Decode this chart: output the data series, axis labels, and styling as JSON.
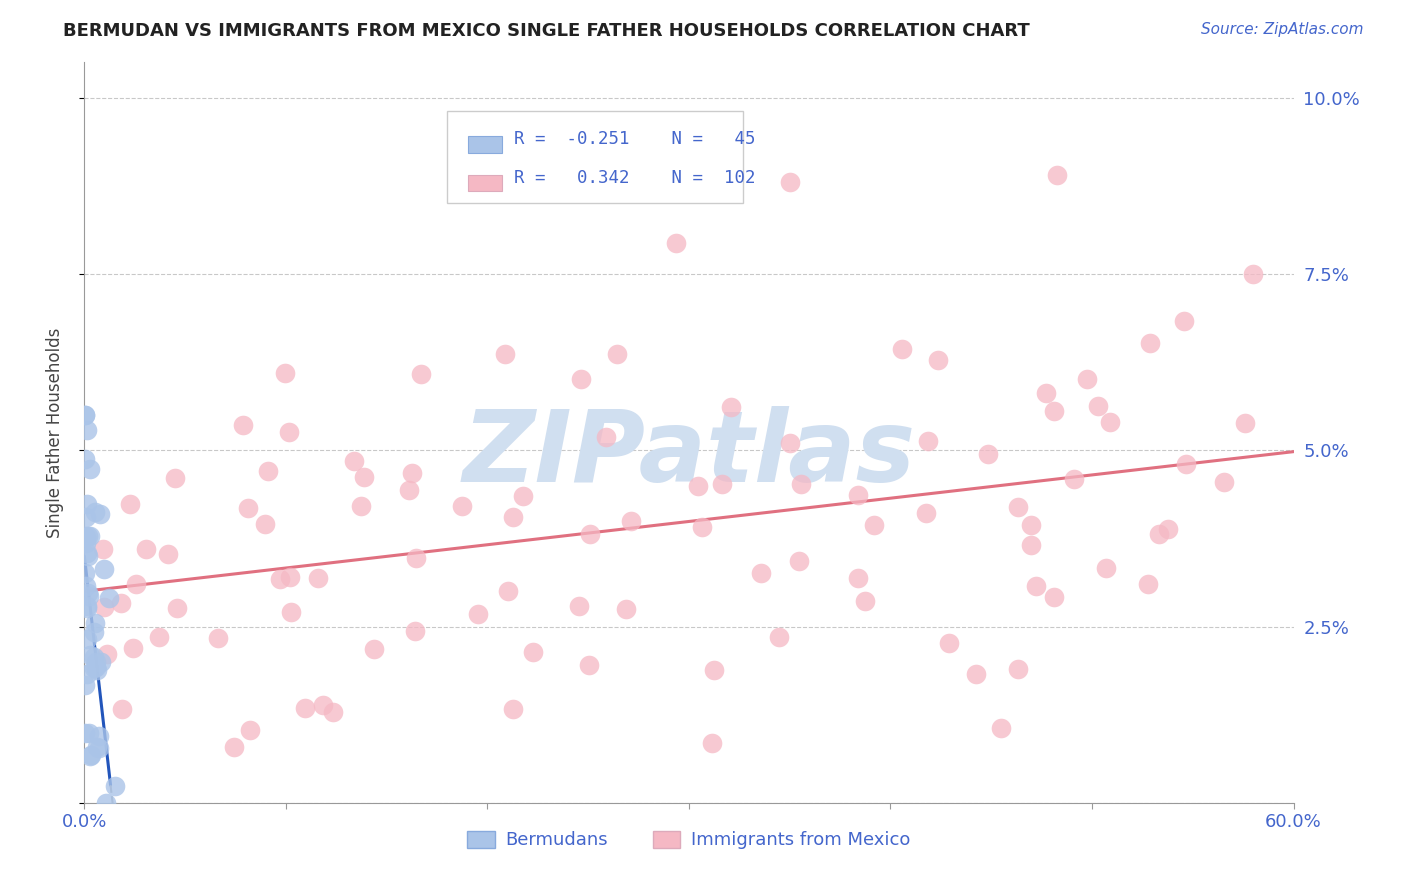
{
  "title": "BERMUDAN VS IMMIGRANTS FROM MEXICO SINGLE FATHER HOUSEHOLDS CORRELATION CHART",
  "source": "Source: ZipAtlas.com",
  "ylabel": "Single Father Households",
  "xlim": [
    0.0,
    0.6
  ],
  "ylim": [
    0.0,
    0.105
  ],
  "ytick_positions": [
    0.0,
    0.025,
    0.05,
    0.075,
    0.1
  ],
  "ytick_labels": [
    "",
    "2.5%",
    "5.0%",
    "7.5%",
    "10.0%"
  ],
  "bermudans_R": -0.251,
  "bermudans_N": 45,
  "mexico_R": 0.342,
  "mexico_N": 102,
  "blue_color": "#aac4e8",
  "pink_color": "#f5b8c4",
  "blue_line_color": "#2255bb",
  "pink_line_color": "#e07080",
  "label_color": "#4466cc",
  "bg_color": "#ffffff",
  "watermark_color": "#d0dff0"
}
